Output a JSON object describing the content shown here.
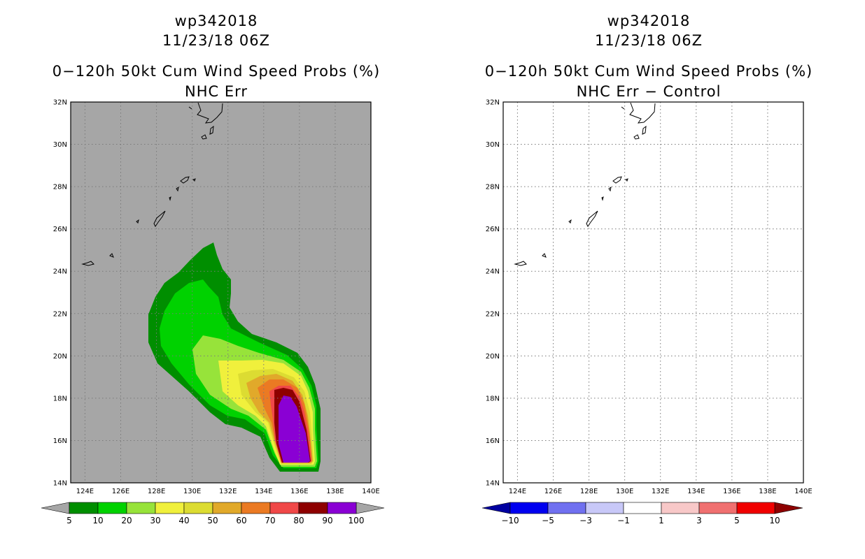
{
  "panels": [
    {
      "storm_id": "wp342018",
      "datetime": "11/23/18 06Z",
      "title": "0−120h 50kt Cum Wind Speed Probs (%)",
      "subtitle": "NHC Err",
      "background_color": "#a6a6a6",
      "lon_ticks": [
        "124E",
        "126E",
        "128E",
        "130E",
        "132E",
        "134E",
        "136E",
        "138E",
        "140E"
      ],
      "lat_ticks": [
        "14N",
        "16N",
        "18N",
        "20N",
        "22N",
        "24N",
        "26N",
        "28N",
        "30N",
        "32N"
      ],
      "colorbar": {
        "labels": [
          "5",
          "10",
          "20",
          "30",
          "40",
          "50",
          "60",
          "70",
          "80",
          "90",
          "100"
        ],
        "colors": [
          "#008e00",
          "#00d200",
          "#97e33a",
          "#f0f03c",
          "#dcdc32",
          "#e1a92a",
          "#eb7a23",
          "#f04848",
          "#8e0000",
          "#8a00d4"
        ],
        "left_arrow_color": "#a6a6a6",
        "right_arrow_color": "#a6a6a6"
      }
    },
    {
      "storm_id": "wp342018",
      "datetime": "11/23/18 06Z",
      "title": "0−120h 50kt Cum Wind Speed Probs (%)",
      "subtitle": "NHC Err − Control",
      "background_color": "#ffffff",
      "lon_ticks": [
        "124E",
        "126E",
        "128E",
        "130E",
        "132E",
        "134E",
        "136E",
        "138E",
        "140E"
      ],
      "lat_ticks": [
        "14N",
        "16N",
        "18N",
        "20N",
        "22N",
        "24N",
        "26N",
        "28N",
        "30N",
        "32N"
      ],
      "colorbar": {
        "labels": [
          "−10",
          "−5",
          "−3",
          "−1",
          "1",
          "3",
          "5",
          "10"
        ],
        "colors": [
          "#0000f0",
          "#7070f0",
          "#c8c8f8",
          "#ffffff",
          "#f8c8c8",
          "#f07070",
          "#f00000"
        ],
        "left_arrow_color": "#0000a0",
        "right_arrow_color": "#8e0000"
      }
    }
  ]
}
